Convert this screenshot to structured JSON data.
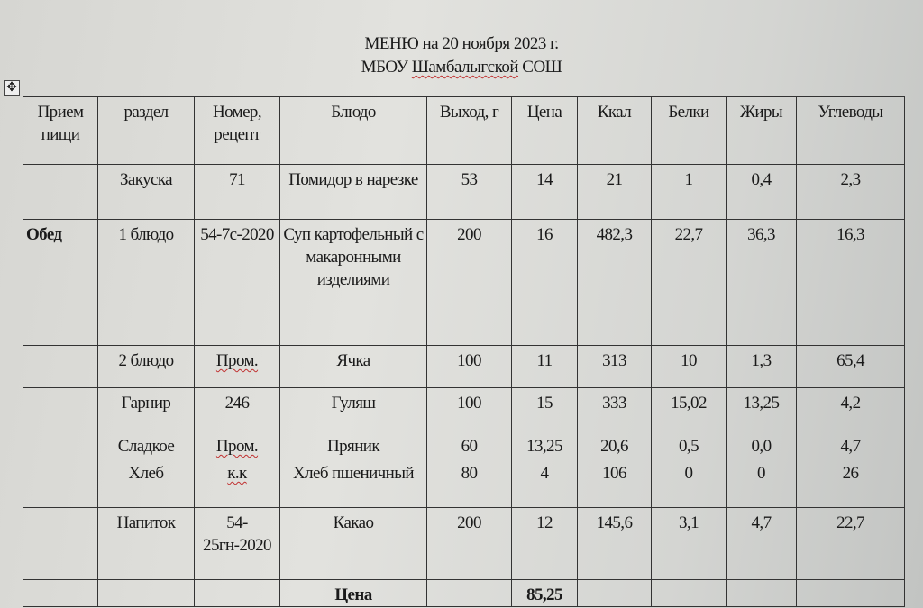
{
  "title": {
    "line1": "МЕНЮ на 20 ноября 2023 г.",
    "line2_prefix": "МБОУ ",
    "line2_name": "Шамбалыгской",
    "line2_suffix": " СОШ"
  },
  "icons": {
    "table_move": "move-handle-icon"
  },
  "table": {
    "headers": [
      "Прием пищи",
      "раздел",
      "Номер, рецепт",
      "Блюдо",
      "Выход, г",
      "Цена",
      "Ккал",
      "Белки",
      "Жиры",
      "Углеводы"
    ],
    "rows": [
      [
        "",
        "Закуска",
        "71",
        "Помидор в нарезке",
        "53",
        "14",
        "21",
        "1",
        "0,4",
        "2,3"
      ],
      [
        "Обед",
        "1 блюдо",
        "54-7с-2020",
        "Суп картофельный с макаронными изделиями",
        "200",
        "16",
        "482,3",
        "22,7",
        "36,3",
        "16,3"
      ],
      [
        "",
        "2 блюдо",
        "Пром.",
        "Ячка",
        "100",
        "11",
        "313",
        "10",
        "1,3",
        "65,4"
      ],
      [
        "",
        "Гарнир",
        "246",
        "Гуляш",
        "100",
        "15",
        "333",
        "15,02",
        "13,25",
        "4,2"
      ],
      [
        "",
        "Сладкое",
        "Пром.",
        "Пряник",
        "60",
        "13,25",
        "20,6",
        "0,5",
        "0,0",
        "4,7"
      ],
      [
        "",
        "Хлеб",
        "к.к",
        "Хлеб пшеничный",
        "80",
        "4",
        "106",
        "0",
        "0",
        "26"
      ],
      [
        "",
        "Напиток",
        "54-25гн-2020",
        "Какао",
        "200",
        "12",
        "145,6",
        "3,1",
        "4,7",
        "22,7"
      ]
    ],
    "total": {
      "label": "Цена",
      "value": "85,25"
    }
  }
}
